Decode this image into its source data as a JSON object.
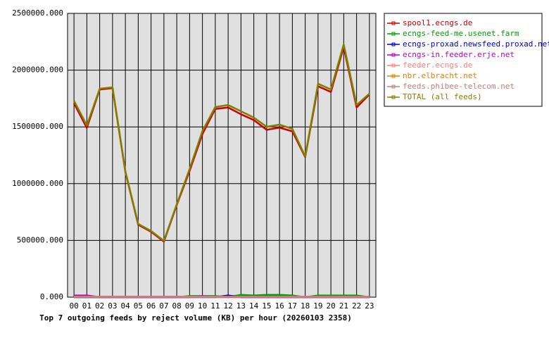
{
  "chart_data": {
    "type": "line",
    "title": "Top 7 outgoing feeds by reject volume (KB) per hour (20260103 2358)",
    "categories": [
      "00",
      "01",
      "02",
      "03",
      "04",
      "05",
      "06",
      "07",
      "08",
      "09",
      "10",
      "11",
      "12",
      "13",
      "14",
      "15",
      "16",
      "17",
      "18",
      "19",
      "20",
      "21",
      "22",
      "23"
    ],
    "ylim": [
      0,
      2500000
    ],
    "yticks": [
      {
        "value": 0,
        "label": "0.000"
      },
      {
        "value": 500000,
        "label": "500000.000"
      },
      {
        "value": 1000000,
        "label": "1000000.000"
      },
      {
        "value": 1500000,
        "label": "1500000.000"
      },
      {
        "value": 2000000,
        "label": "2000000.000"
      },
      {
        "value": 2500000,
        "label": "2500000.000"
      }
    ],
    "grid": true,
    "legend": "right",
    "series": [
      {
        "name": "spool1.ecngs.de",
        "color": "#cc0000",
        "values": [
          1708000,
          1491000,
          1829000,
          1842000,
          1103000,
          638000,
          576000,
          489000,
          812000,
          1112000,
          1437000,
          1658000,
          1671000,
          1611000,
          1560000,
          1474000,
          1493000,
          1461000,
          1234000,
          1858000,
          1808000,
          2205000,
          1671000,
          1786000
        ]
      },
      {
        "name": "ecngs-feed-me.usenet.farm",
        "color": "#00a000",
        "values": [
          0,
          0,
          0,
          0,
          0,
          0,
          0,
          0,
          0,
          10000,
          10000,
          10000,
          0,
          20000,
          15000,
          20000,
          20000,
          15000,
          0,
          15000,
          15000,
          15000,
          15000,
          0
        ]
      },
      {
        "name": "ecngs-proxad.newsfeed.proxad.net",
        "color": "#0000c0",
        "values": [
          0,
          0,
          0,
          0,
          0,
          0,
          0,
          0,
          0,
          0,
          0,
          0,
          15000,
          0,
          0,
          0,
          0,
          0,
          0,
          0,
          0,
          0,
          0,
          0
        ]
      },
      {
        "name": "ecngs-in.feeder.erje.net",
        "color": "#c000c0",
        "values": [
          15000,
          15000,
          0,
          0,
          0,
          0,
          0,
          0,
          0,
          0,
          10000,
          0,
          0,
          0,
          0,
          0,
          0,
          0,
          0,
          0,
          0,
          0,
          0,
          0
        ]
      },
      {
        "name": "feeder.ecngs.de",
        "color": "#ff8080",
        "values": [
          5000,
          5000,
          5000,
          5000,
          5000,
          5000,
          5000,
          5000,
          5000,
          5000,
          5000,
          5000,
          5000,
          5000,
          5000,
          5000,
          5000,
          5000,
          5000,
          5000,
          5000,
          5000,
          5000,
          5000
        ]
      },
      {
        "name": "nbr.elbracht.net",
        "color": "#e08000",
        "values": [
          3000,
          3000,
          3000,
          3000,
          3000,
          3000,
          3000,
          3000,
          3000,
          3000,
          3000,
          3000,
          3000,
          3000,
          3000,
          3000,
          3000,
          3000,
          3000,
          3000,
          3000,
          3000,
          3000,
          3000
        ]
      },
      {
        "name": "feeds.phibee-telecom.net",
        "color": "#c08080",
        "values": [
          2000,
          2000,
          2000,
          2000,
          2000,
          2000,
          2000,
          2000,
          2000,
          2000,
          2000,
          2000,
          2000,
          2000,
          2000,
          2000,
          2000,
          2000,
          2000,
          2000,
          2000,
          2000,
          2000,
          2000
        ]
      },
      {
        "name": "TOTAL (all feeds)",
        "color": "#808000",
        "values": [
          1730000,
          1513000,
          1836000,
          1849000,
          1110000,
          645000,
          583000,
          496000,
          819000,
          1129000,
          1464000,
          1675000,
          1693000,
          1638000,
          1582000,
          1501000,
          1520000,
          1483000,
          1241000,
          1880000,
          1830000,
          2227000,
          1693000,
          1793000
        ]
      }
    ]
  }
}
